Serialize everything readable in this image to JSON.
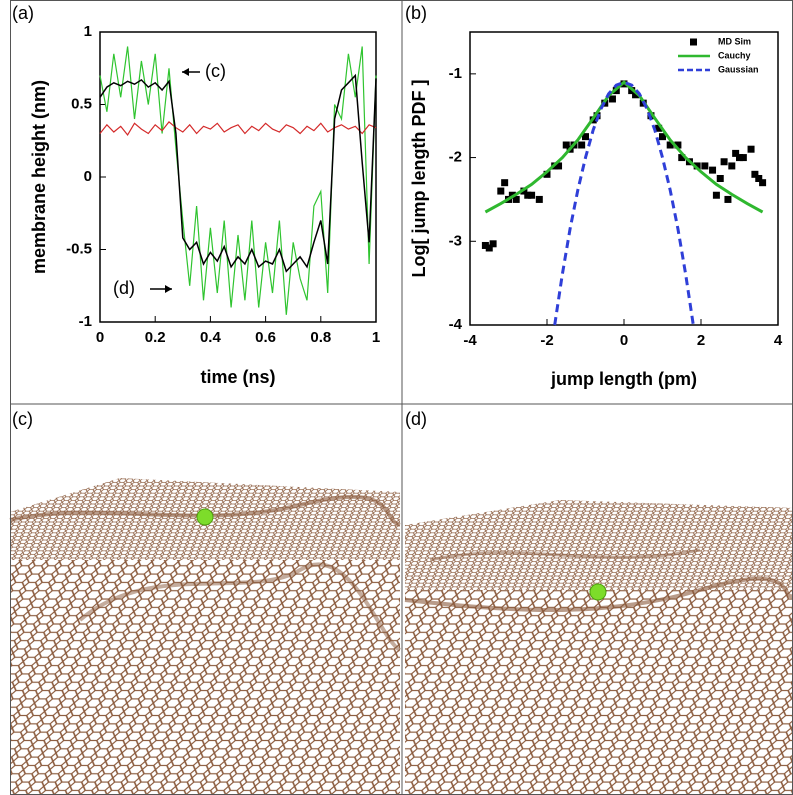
{
  "panels": [
    "(a)",
    "(b)",
    "(c)",
    "(d)"
  ],
  "chart_data": [
    {
      "type": "line",
      "xlabel": "time (ns)",
      "ylabel": "membrane height (nm)",
      "annotations": [
        "(c)",
        "(d)"
      ],
      "x": [
        0,
        0.025,
        0.05,
        0.075,
        0.1,
        0.125,
        0.15,
        0.175,
        0.2,
        0.225,
        0.25,
        0.275,
        0.3,
        0.325,
        0.35,
        0.375,
        0.4,
        0.425,
        0.45,
        0.475,
        0.5,
        0.525,
        0.55,
        0.575,
        0.6,
        0.625,
        0.65,
        0.675,
        0.7,
        0.725,
        0.75,
        0.775,
        0.8,
        0.825,
        0.85,
        0.875,
        0.9,
        0.925,
        0.95,
        0.975,
        1
      ],
      "series": [
        {
          "color": "#2fc42f",
          "values": [
            0.7,
            0.45,
            0.85,
            0.55,
            0.9,
            0.4,
            0.8,
            0.5,
            0.85,
            0.3,
            0.75,
            0.2,
            -0.3,
            -0.75,
            -0.2,
            -0.85,
            -0.35,
            -0.8,
            -0.3,
            -0.9,
            -0.4,
            -0.85,
            -0.3,
            -0.9,
            -0.45,
            -0.8,
            -0.3,
            -0.95,
            -0.45,
            -0.7,
            -0.85,
            -0.2,
            -0.1,
            -0.8,
            0.5,
            0.4,
            0.85,
            0.55,
            0.9,
            -0.6,
            0.7
          ]
        },
        {
          "color": "#d42a2a",
          "values": [
            0.3,
            0.36,
            0.31,
            0.35,
            0.29,
            0.37,
            0.33,
            0.3,
            0.36,
            0.32,
            0.38,
            0.34,
            0.31,
            0.36,
            0.3,
            0.35,
            0.33,
            0.37,
            0.31,
            0.34,
            0.36,
            0.3,
            0.35,
            0.32,
            0.37,
            0.33,
            0.31,
            0.36,
            0.34,
            0.3,
            0.35,
            0.32,
            0.37,
            0.31,
            0.34,
            0.36,
            0.33,
            0.35,
            0.3,
            0.36,
            0.34
          ]
        },
        {
          "color": "#000000",
          "values": [
            0.55,
            0.62,
            0.65,
            0.63,
            0.66,
            0.64,
            0.67,
            0.62,
            0.65,
            0.6,
            0.66,
            0.3,
            -0.42,
            -0.5,
            -0.45,
            -0.6,
            -0.52,
            -0.58,
            -0.48,
            -0.62,
            -0.55,
            -0.6,
            -0.5,
            -0.62,
            -0.58,
            -0.6,
            -0.5,
            -0.65,
            -0.6,
            -0.55,
            -0.62,
            -0.45,
            -0.3,
            -0.6,
            0.4,
            0.6,
            0.65,
            0.7,
            0.1,
            -0.45,
            0.68
          ]
        }
      ],
      "xlim": [
        0,
        1
      ],
      "xticks": [
        0,
        0.2,
        0.4,
        0.6,
        0.8,
        1
      ],
      "ylim": [
        -1,
        1
      ],
      "yticks": [
        -1,
        -0.5,
        0,
        0.5,
        1
      ]
    },
    {
      "type": "scatter",
      "xlabel": "jump length (pm)",
      "ylabel": "Log[ jump length PDF ]",
      "legend": "upper right",
      "series": [
        {
          "name": "MD Sim",
          "style": "markers",
          "color": "#000000",
          "x": [
            -3.6,
            -3.5,
            -3.4,
            -3.2,
            -3.1,
            -3.0,
            -2.9,
            -2.8,
            -2.6,
            -2.5,
            -2.4,
            -2.2,
            -2.0,
            -1.8,
            -1.7,
            -1.5,
            -1.4,
            -1.3,
            -1.1,
            -1.0,
            -0.8,
            -0.7,
            -0.5,
            -0.3,
            -0.2,
            0,
            0.2,
            0.3,
            0.5,
            0.7,
            0.9,
            1.0,
            1.2,
            1.4,
            1.5,
            1.7,
            1.9,
            2.1,
            2.3,
            2.4,
            2.5,
            2.6,
            2.7,
            2.8,
            2.9,
            3.0,
            3.1,
            3.3,
            3.4,
            3.5,
            3.6
          ],
          "values": [
            -3.05,
            -3.08,
            -3.03,
            -2.4,
            -2.3,
            -2.5,
            -2.45,
            -2.5,
            -2.4,
            -2.45,
            -2.45,
            -2.5,
            -2.2,
            -2.1,
            -2.1,
            -1.85,
            -1.9,
            -1.85,
            -1.85,
            -1.75,
            -1.55,
            -1.5,
            -1.35,
            -1.3,
            -1.2,
            -1.12,
            -1.2,
            -1.25,
            -1.35,
            -1.5,
            -1.65,
            -1.75,
            -1.85,
            -1.85,
            -2.0,
            -2.05,
            -2.1,
            -2.1,
            -2.15,
            -2.45,
            -2.25,
            -2.05,
            -2.5,
            -2.1,
            -1.95,
            -2.0,
            -2.0,
            -1.9,
            -2.2,
            -2.25,
            -2.3
          ]
        },
        {
          "name": "Cauchy",
          "style": "solid",
          "color": "#2fb82f",
          "x": [
            -3.6,
            -3.2,
            -2.8,
            -2.4,
            -2.0,
            -1.6,
            -1.2,
            -0.8,
            -0.4,
            0,
            0.4,
            0.8,
            1.2,
            1.6,
            2.0,
            2.4,
            2.8,
            3.2,
            3.6
          ],
          "values": [
            -2.65,
            -2.55,
            -2.44,
            -2.32,
            -2.17,
            -2.0,
            -1.79,
            -1.53,
            -1.26,
            -1.1,
            -1.26,
            -1.53,
            -1.79,
            -2.0,
            -2.17,
            -2.32,
            -2.44,
            -2.55,
            -2.65
          ]
        },
        {
          "name": "Gaussian",
          "style": "dashed",
          "color": "#2f3fd8",
          "x": [
            -1.8,
            -1.6,
            -1.4,
            -1.2,
            -1.0,
            -0.8,
            -0.6,
            -0.4,
            -0.2,
            0,
            0.2,
            0.4,
            0.6,
            0.8,
            1.0,
            1.2,
            1.4,
            1.6,
            1.8
          ],
          "values": [
            -4.0,
            -3.39,
            -2.85,
            -2.39,
            -2.0,
            -1.67,
            -1.42,
            -1.24,
            -1.136,
            -1.1,
            -1.136,
            -1.24,
            -1.42,
            -1.67,
            -2.0,
            -2.39,
            -2.85,
            -3.39,
            -4.0
          ]
        }
      ],
      "xlim": [
        -4,
        4
      ],
      "xticks": [
        -4,
        -2,
        0,
        2,
        4
      ],
      "ylim": [
        -4,
        -0.5
      ],
      "yticks": [
        -4,
        -3,
        -2,
        -1
      ]
    }
  ]
}
